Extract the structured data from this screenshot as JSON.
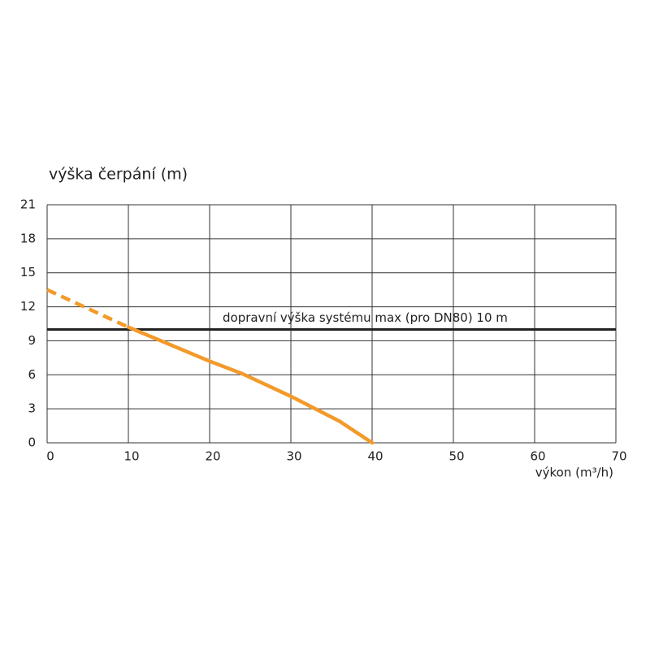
{
  "chart_data": {
    "type": "line",
    "ylabel": "výška čerpání (m)",
    "xlabel": "výkon (m³/h)",
    "xlim": [
      0,
      70
    ],
    "xticks": [
      0,
      10,
      20,
      30,
      40,
      50,
      60,
      70
    ],
    "ylim": [
      0,
      21
    ],
    "yticks": [
      0,
      3,
      6,
      9,
      12,
      15,
      18,
      21
    ],
    "grid": true,
    "series": [
      {
        "color": "#f39a2b",
        "dashed": true,
        "x": [
          0,
          10
        ],
        "values": [
          13.5,
          10.2
        ]
      },
      {
        "color": "#f39a2b",
        "dashed": false,
        "x": [
          10,
          14,
          20,
          24,
          30,
          33,
          36,
          40
        ],
        "values": [
          10.2,
          9.0,
          7.2,
          6.1,
          4.1,
          3.0,
          1.9,
          0
        ]
      }
    ],
    "hlines": [
      {
        "value": 10,
        "color": "#222222",
        "label": "dopravní výška systému max (pro DN80) 10 m"
      }
    ]
  }
}
